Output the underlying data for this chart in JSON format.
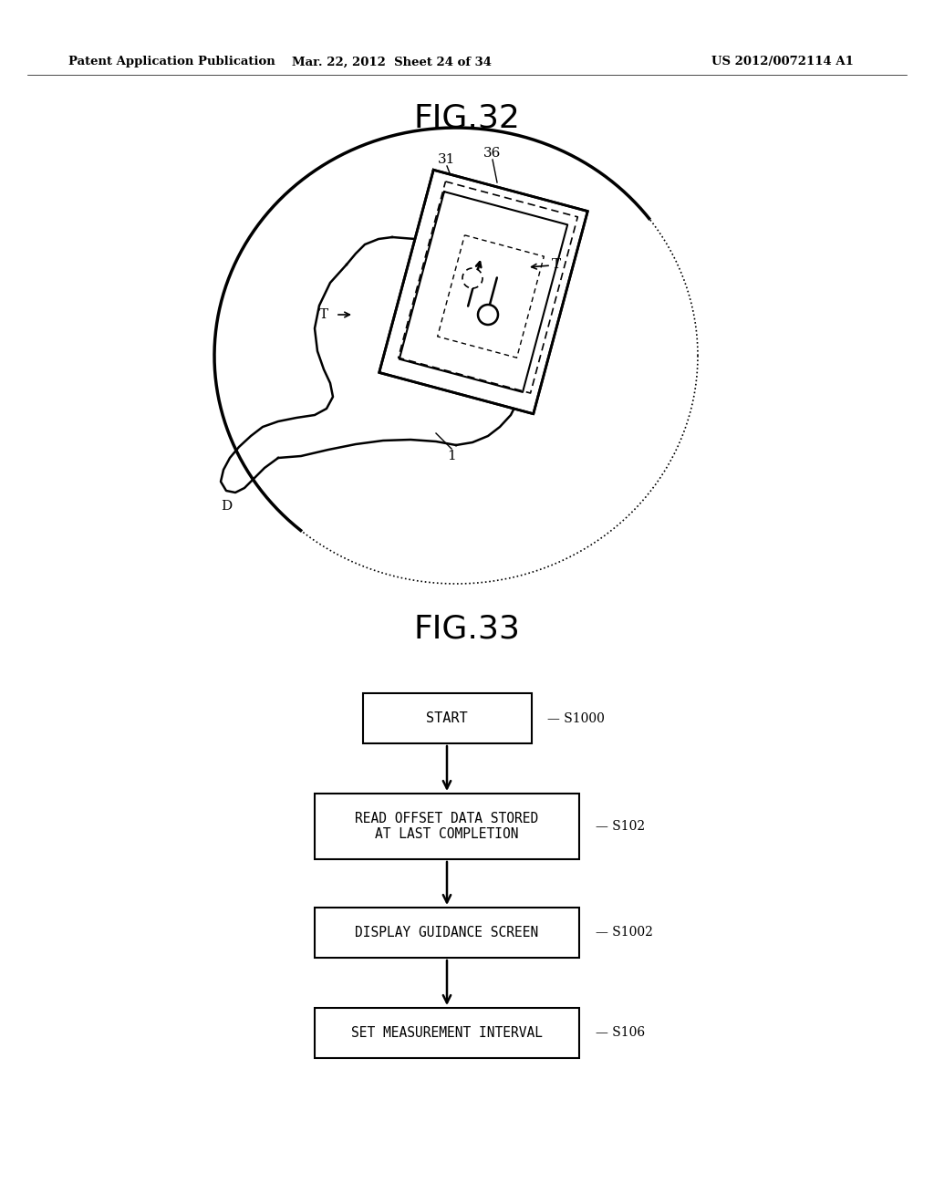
{
  "background_color": "#ffffff",
  "header_left": "Patent Application Publication",
  "header_mid": "Mar. 22, 2012  Sheet 24 of 34",
  "header_right": "US 2012/0072114 A1",
  "fig32_title": "FIG.32",
  "fig33_title": "FIG.33"
}
